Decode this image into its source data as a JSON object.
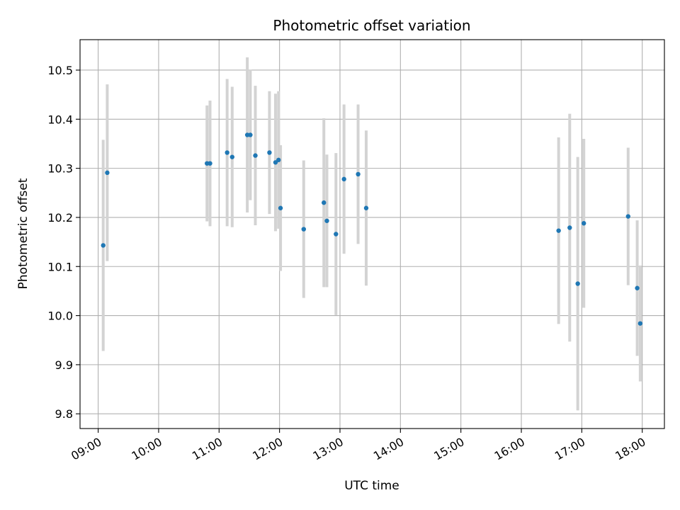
{
  "chart_data": {
    "type": "scatter",
    "title": "Photometric offset variation",
    "xlabel": "UTC time",
    "ylabel": "Photometric offset",
    "xlim": [
      "08:42",
      "18:22"
    ],
    "ylim": [
      9.77,
      10.562
    ],
    "x_ticks": [
      "09:00",
      "10:00",
      "11:00",
      "12:00",
      "13:00",
      "14:00",
      "15:00",
      "16:00",
      "17:00",
      "18:00"
    ],
    "y_ticks": [
      "9.8",
      "9.9",
      "10.0",
      "10.1",
      "10.2",
      "10.3",
      "10.4",
      "10.5"
    ],
    "grid": true,
    "colors": {
      "points": "#1f77b4",
      "errorbars": "#d3d3d3",
      "grid": "#b0b0b0"
    },
    "points": [
      {
        "time": "09:05",
        "y": 10.143,
        "err": 0.215
      },
      {
        "time": "09:09",
        "y": 10.291,
        "err": 0.18
      },
      {
        "time": "10:48",
        "y": 10.31,
        "err": 0.118
      },
      {
        "time": "10:51",
        "y": 10.31,
        "err": 0.128
      },
      {
        "time": "11:08",
        "y": 10.332,
        "err": 0.15
      },
      {
        "time": "11:13",
        "y": 10.323,
        "err": 0.143
      },
      {
        "time": "11:28",
        "y": 10.368,
        "err": 0.158
      },
      {
        "time": "11:31",
        "y": 10.368,
        "err": 0.133
      },
      {
        "time": "11:36",
        "y": 10.326,
        "err": 0.142
      },
      {
        "time": "11:50",
        "y": 10.332,
        "err": 0.125
      },
      {
        "time": "11:56",
        "y": 10.312,
        "err": 0.14
      },
      {
        "time": "11:59",
        "y": 10.317,
        "err": 0.14
      },
      {
        "time": "12:01",
        "y": 10.219,
        "err": 0.128
      },
      {
        "time": "12:24",
        "y": 10.176,
        "err": 0.14
      },
      {
        "time": "12:44",
        "y": 10.23,
        "err": 0.172
      },
      {
        "time": "12:47",
        "y": 10.193,
        "err": 0.135
      },
      {
        "time": "12:56",
        "y": 10.166,
        "err": 0.165
      },
      {
        "time": "13:04",
        "y": 10.278,
        "err": 0.152
      },
      {
        "time": "13:18",
        "y": 10.288,
        "err": 0.142
      },
      {
        "time": "13:26",
        "y": 10.219,
        "err": 0.158
      },
      {
        "time": "16:37",
        "y": 10.173,
        "err": 0.19
      },
      {
        "time": "16:48",
        "y": 10.179,
        "err": 0.232
      },
      {
        "time": "16:56",
        "y": 10.065,
        "err": 0.258
      },
      {
        "time": "17:02",
        "y": 10.188,
        "err": 0.172
      },
      {
        "time": "17:46",
        "y": 10.202,
        "err": 0.14
      },
      {
        "time": "17:55",
        "y": 10.056,
        "err": 0.138
      },
      {
        "time": "17:58",
        "y": 9.984,
        "err": 0.118
      }
    ]
  }
}
